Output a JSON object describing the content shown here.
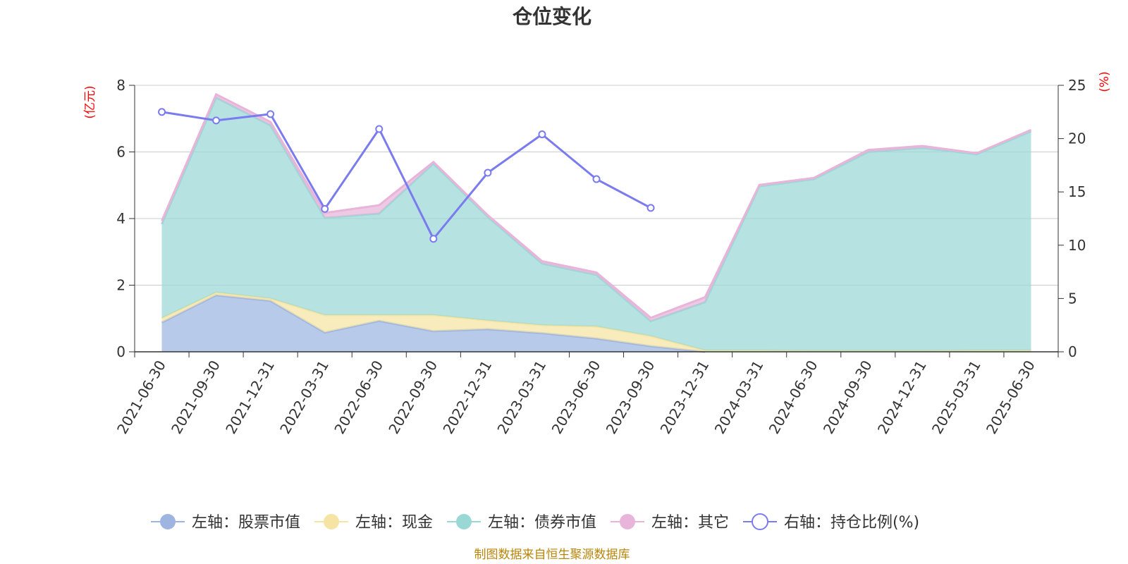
{
  "chart_data": {
    "type": "area",
    "title": "仓位变化",
    "left_axis_unit": "(亿元)",
    "right_axis_unit": "(%)",
    "categories": [
      "2021-06-30",
      "2021-09-30",
      "2021-12-31",
      "2022-03-31",
      "2022-06-30",
      "2022-09-30",
      "2022-12-31",
      "2023-03-31",
      "2023-06-30",
      "2023-09-30",
      "2023-12-31",
      "2024-03-31",
      "2024-06-30",
      "2024-09-30",
      "2024-12-31",
      "2025-03-31",
      "2025-06-30"
    ],
    "left_ylim": [
      0,
      8
    ],
    "left_ticks": [
      "0",
      "2",
      "4",
      "6",
      "8"
    ],
    "right_ylim": [
      0,
      25
    ],
    "right_ticks": [
      "0",
      "5",
      "10",
      "15",
      "20",
      "25"
    ],
    "grid": true,
    "legend_position": "bottom",
    "series": [
      {
        "name": "左轴：股票市值",
        "axis": "left",
        "stack": true,
        "color": "#9db5e0",
        "values": [
          0.88,
          1.7,
          1.53,
          0.58,
          0.93,
          0.62,
          0.68,
          0.56,
          0.4,
          0.17,
          null,
          null,
          null,
          null,
          null,
          null,
          null
        ]
      },
      {
        "name": "左轴：现金",
        "axis": "left",
        "stack": true,
        "color": "#f5e4a3",
        "values": [
          0.13,
          0.08,
          0.07,
          0.52,
          0.17,
          0.48,
          0.26,
          0.24,
          0.36,
          0.3,
          0.04,
          0.04,
          0.03,
          0.03,
          0.03,
          0.04,
          0.04
        ]
      },
      {
        "name": "左轴：债券市值",
        "axis": "left",
        "stack": true,
        "color": "#9ad8d6",
        "values": [
          2.82,
          5.85,
          5.2,
          2.92,
          3.05,
          4.55,
          3.11,
          1.85,
          1.55,
          0.45,
          1.45,
          4.93,
          5.15,
          5.97,
          6.09,
          5.89,
          6.58
        ]
      },
      {
        "name": "左轴：其它",
        "axis": "left",
        "stack": true,
        "color": "#e8b4d9",
        "values": [
          0.1,
          0.1,
          0.1,
          0.15,
          0.25,
          0.05,
          0.05,
          0.07,
          0.07,
          0.1,
          0.15,
          0.04,
          0.04,
          0.06,
          0.06,
          0.03,
          0.04
        ]
      },
      {
        "name": "右轴：持仓比例(%)",
        "axis": "right",
        "type": "line",
        "color": "#7b7bf0",
        "values": [
          22.5,
          21.7,
          22.3,
          13.4,
          20.9,
          10.6,
          16.8,
          20.4,
          16.2,
          13.5,
          null,
          null,
          null,
          null,
          null,
          null,
          null
        ]
      }
    ]
  },
  "legend": [
    {
      "label": "左轴：股票市值",
      "color": "#9db5e0",
      "shape": "filled-circle"
    },
    {
      "label": "左轴：现金",
      "color": "#f5e4a3",
      "shape": "filled-circle"
    },
    {
      "label": "左轴：债券市值",
      "color": "#9ad8d6",
      "shape": "filled-circle"
    },
    {
      "label": "左轴：其它",
      "color": "#e8b4d9",
      "shape": "filled-circle"
    },
    {
      "label": "右轴：持仓比例(%)",
      "color": "#7b7bf0",
      "shape": "hollow-circle"
    }
  ],
  "source": "制图数据来自恒生聚源数据库"
}
